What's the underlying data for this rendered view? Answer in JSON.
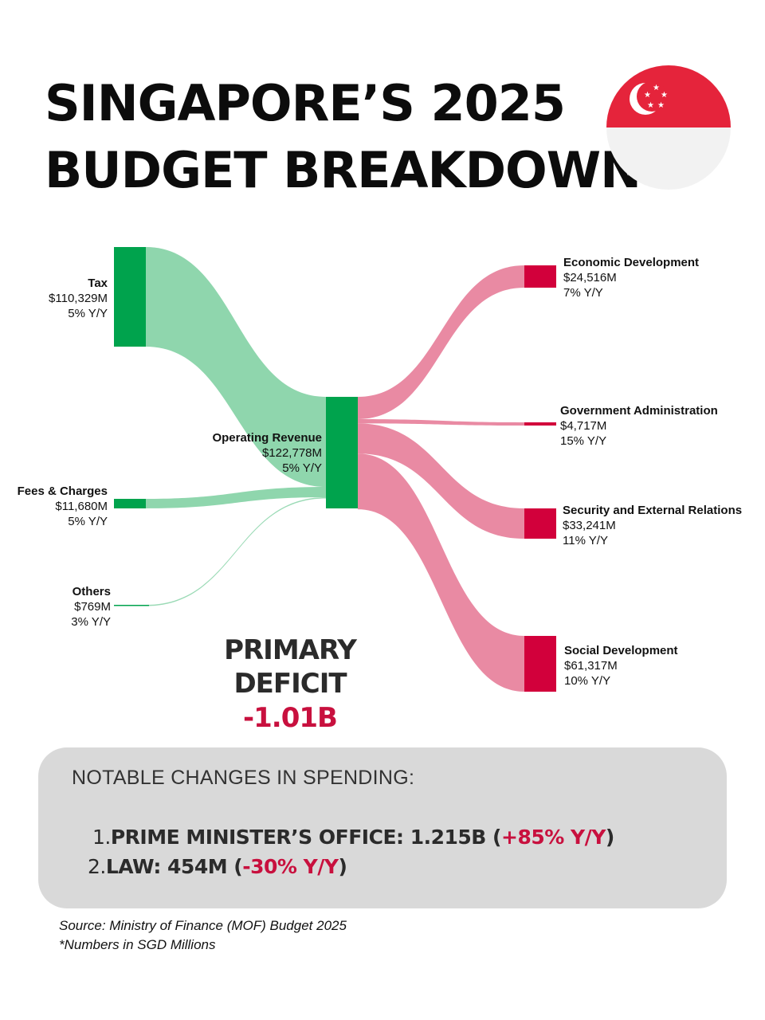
{
  "title": {
    "line1": "SINGAPORE’S 2025",
    "line2": "BUDGET BREAKDOWN"
  },
  "flag_icon": "singapore-flag-icon",
  "colors": {
    "income": "#00a34d",
    "income_link": "#8fd6ad",
    "spend": "#d2003b",
    "spend_link": "#e98aa3",
    "accent_red": "#c8103e"
  },
  "chart_data": {
    "type": "sankey",
    "unit": "SGD Millions",
    "sources": [
      {
        "name": "Tax",
        "value": 110329,
        "value_label": "$110,329M",
        "change": "5% Y/Y"
      },
      {
        "name": "Fees & Charges",
        "value": 11680,
        "value_label": "$11,680M",
        "change": "5% Y/Y"
      },
      {
        "name": "Others",
        "value": 769,
        "value_label": "$769M",
        "change": "3% Y/Y"
      }
    ],
    "center": {
      "name": "Operating Revenue",
      "value": 122778,
      "value_label": "$122,778M",
      "change": "5% Y/Y"
    },
    "targets": [
      {
        "name": "Economic Development",
        "value": 24516,
        "value_label": "$24,516M",
        "change": "7% Y/Y"
      },
      {
        "name": "Government Administration",
        "value": 4717,
        "value_label": "$4,717M",
        "change": "15% Y/Y"
      },
      {
        "name": "Security and External Relations",
        "value": 33241,
        "value_label": "$33,241M",
        "change": "11% Y/Y"
      },
      {
        "name": "Social Development",
        "value": 61317,
        "value_label": "$61,317M",
        "change": "10% Y/Y"
      }
    ]
  },
  "deficit": {
    "label": "PRIMARY DEFICIT",
    "value": "-1.01B"
  },
  "notes": {
    "heading": "NOTABLE CHANGES IN SPENDING:",
    "items": [
      {
        "index": "1.",
        "text": "PRIME MINISTER’S OFFICE: 1.215B (",
        "change": "+85% Y/Y",
        "close": ")"
      },
      {
        "index": "2.",
        "text": "LAW: 454M (",
        "change": "-30% Y/Y",
        "close": ")"
      }
    ]
  },
  "source": {
    "line1": "Source: Ministry of Finance (MOF) Budget 2025",
    "line2": "*Numbers in SGD Millions"
  }
}
